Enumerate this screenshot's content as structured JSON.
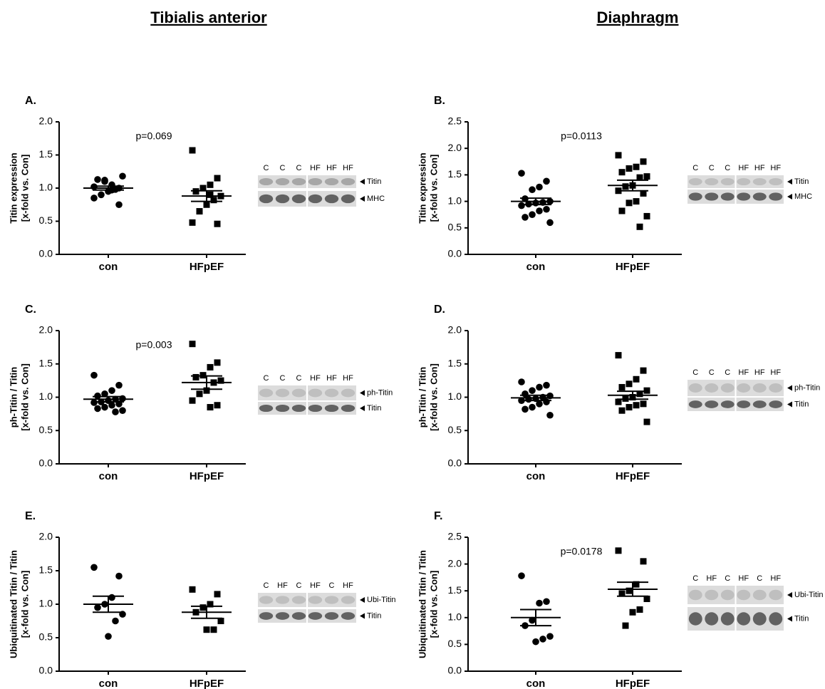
{
  "titles": [
    "Tibialis anterior",
    "Diaphragm"
  ],
  "chart_data": [
    {
      "type": "strip",
      "panel": "A.",
      "ylabel": [
        "Titin expression",
        "[x-fold vs. Con]"
      ],
      "categories": [
        "con",
        "HFpEF"
      ],
      "annotation": "p=0.069",
      "ylim": [
        0,
        2
      ],
      "yticks": [
        {
          "value": 0,
          "label": "0.0"
        },
        {
          "value": 0.5,
          "label": "0.5"
        },
        {
          "value": 1,
          "label": "1.0"
        },
        {
          "value": 1.5,
          "label": "1.5"
        },
        {
          "value": 2,
          "label": "2.0"
        }
      ],
      "groups": [
        {
          "marker": "circle",
          "values": [
            1.02,
            1.0,
            1.05,
            1.1,
            1.13,
            1.18,
            0.98,
            0.95,
            0.9,
            0.85,
            0.75,
            0.97,
            1.12
          ],
          "mean": 1.0,
          "sem": 0.03
        },
        {
          "marker": "square",
          "values": [
            1.57,
            1.15,
            1.05,
            1.0,
            0.95,
            0.88,
            0.82,
            0.75,
            0.65,
            0.48,
            0.46,
            0.9
          ],
          "mean": 0.88,
          "sem": 0.08
        }
      ],
      "blot": {
        "lanes": [
          "C",
          "C",
          "C",
          "HF",
          "HF",
          "HF"
        ],
        "bands": [
          "Titin",
          "MHC"
        ]
      }
    },
    {
      "type": "strip",
      "panel": "B.",
      "ylabel": [
        "Titin expression",
        "[x-fold vs. Con]"
      ],
      "categories": [
        "con",
        "HFpEF"
      ],
      "annotation": "p=0.0113",
      "ylim": [
        0,
        2.5
      ],
      "yticks": [
        {
          "value": 0,
          "label": "0.0"
        },
        {
          "value": 0.5,
          "label": "0.5"
        },
        {
          "value": 1,
          "label": "1.0"
        },
        {
          "value": 1.5,
          "label": "1.5"
        },
        {
          "value": 2,
          "label": "2.0"
        },
        {
          "value": 2.5,
          "label": "2.5"
        }
      ],
      "groups": [
        {
          "marker": "circle",
          "values": [
            1.53,
            1.38,
            1.27,
            1.22,
            1.05,
            1.0,
            0.98,
            0.97,
            0.95,
            0.92,
            0.85,
            0.82,
            0.75,
            0.7,
            0.6
          ],
          "mean": 1.0,
          "sem": 0.06
        },
        {
          "marker": "square",
          "values": [
            1.87,
            1.75,
            1.65,
            1.62,
            1.55,
            1.47,
            1.45,
            1.3,
            1.28,
            1.2,
            1.15,
            1.0,
            0.97,
            0.82,
            0.72,
            0.52
          ],
          "mean": 1.3,
          "sem": 0.1
        }
      ],
      "blot": {
        "lanes": [
          "C",
          "C",
          "C",
          "HF",
          "HF",
          "HF"
        ],
        "bands": [
          "Titin",
          "MHC"
        ]
      }
    },
    {
      "type": "strip",
      "panel": "C.",
      "ylabel": [
        "ph-Titin / Titin",
        "[x-fold vs. Con]"
      ],
      "categories": [
        "con",
        "HFpEF"
      ],
      "annotation": "p=0.003",
      "ylim": [
        0,
        2
      ],
      "yticks": [
        {
          "value": 0,
          "label": "0.0"
        },
        {
          "value": 0.5,
          "label": "0.5"
        },
        {
          "value": 1,
          "label": "1.0"
        },
        {
          "value": 1.5,
          "label": "1.5"
        },
        {
          "value": 2,
          "label": "2.0"
        }
      ],
      "groups": [
        {
          "marker": "circle",
          "values": [
            1.33,
            1.18,
            1.1,
            1.05,
            1.02,
            0.98,
            0.97,
            0.95,
            0.93,
            0.92,
            0.9,
            0.88,
            0.85,
            0.83,
            0.8,
            0.78
          ],
          "mean": 0.97,
          "sem": 0.04
        },
        {
          "marker": "square",
          "values": [
            1.8,
            1.52,
            1.45,
            1.33,
            1.3,
            1.25,
            1.22,
            1.1,
            1.05,
            0.95,
            0.88,
            0.85
          ],
          "mean": 1.22,
          "sem": 0.1
        }
      ],
      "blot": {
        "lanes": [
          "C",
          "C",
          "C",
          "HF",
          "HF",
          "HF"
        ],
        "bands": [
          "ph-Titin",
          "Titin"
        ]
      }
    },
    {
      "type": "strip",
      "panel": "D.",
      "ylabel": [
        "ph-Titin / Titin",
        "[x-fold vs. Con]"
      ],
      "categories": [
        "con",
        "HFpEF"
      ],
      "ylim": [
        0,
        2
      ],
      "yticks": [
        {
          "value": 0,
          "label": "0.0"
        },
        {
          "value": 0.5,
          "label": "0.5"
        },
        {
          "value": 1,
          "label": "1.0"
        },
        {
          "value": 1.5,
          "label": "1.5"
        },
        {
          "value": 2,
          "label": "2.0"
        }
      ],
      "groups": [
        {
          "marker": "circle",
          "values": [
            1.23,
            1.18,
            1.15,
            1.1,
            1.05,
            1.02,
            1.0,
            0.98,
            0.97,
            0.95,
            0.93,
            0.9,
            0.85,
            0.82,
            0.73
          ],
          "mean": 0.99,
          "sem": 0.04
        },
        {
          "marker": "square",
          "values": [
            1.63,
            1.4,
            1.27,
            1.2,
            1.15,
            1.1,
            1.05,
            1.0,
            0.98,
            0.93,
            0.9,
            0.88,
            0.85,
            0.8,
            0.63
          ],
          "mean": 1.03,
          "sem": 0.06
        }
      ],
      "blot": {
        "lanes": [
          "C",
          "C",
          "C",
          "HF",
          "HF",
          "HF"
        ],
        "bands": [
          "ph-Titin",
          "Titin"
        ]
      }
    },
    {
      "type": "strip",
      "panel": "E.",
      "ylabel": [
        "Ubiquitinated Titin / Titin",
        "[x-fold vs. Con]"
      ],
      "categories": [
        "con",
        "HFpEF"
      ],
      "ylim": [
        0,
        2
      ],
      "yticks": [
        {
          "value": 0,
          "label": "0.0"
        },
        {
          "value": 0.5,
          "label": "0.5"
        },
        {
          "value": 1,
          "label": "1.0"
        },
        {
          "value": 1.5,
          "label": "1.5"
        },
        {
          "value": 2,
          "label": "2.0"
        }
      ],
      "groups": [
        {
          "marker": "circle",
          "values": [
            1.55,
            1.42,
            1.1,
            1.0,
            0.95,
            0.85,
            0.75,
            0.52
          ],
          "mean": 1.0,
          "sem": 0.12
        },
        {
          "marker": "square",
          "values": [
            1.22,
            1.15,
            1.0,
            0.95,
            0.88,
            0.75,
            0.62,
            0.62
          ],
          "mean": 0.88,
          "sem": 0.09
        }
      ],
      "blot": {
        "lanes": [
          "C",
          "HF",
          "C",
          "HF",
          "C",
          "HF"
        ],
        "bands": [
          "Ubi-Titin",
          "Titin"
        ]
      }
    },
    {
      "type": "strip",
      "panel": "F.",
      "ylabel": [
        "Ubiquitinated Titin / Titin",
        "[x-fold vs. Con]"
      ],
      "categories": [
        "con",
        "HFpEF"
      ],
      "annotation": "p=0.0178",
      "ylim": [
        0,
        2.5
      ],
      "yticks": [
        {
          "value": 0,
          "label": "0.0"
        },
        {
          "value": 0.5,
          "label": "0.5"
        },
        {
          "value": 1,
          "label": "1.0"
        },
        {
          "value": 1.5,
          "label": "1.5"
        },
        {
          "value": 2,
          "label": "2.0"
        },
        {
          "value": 2.5,
          "label": "2.5"
        }
      ],
      "groups": [
        {
          "marker": "circle",
          "values": [
            1.78,
            1.3,
            1.27,
            0.95,
            0.85,
            0.65,
            0.6,
            0.55
          ],
          "mean": 1.0,
          "sem": 0.15
        },
        {
          "marker": "square",
          "values": [
            2.25,
            2.05,
            1.62,
            1.5,
            1.45,
            1.35,
            1.15,
            1.1,
            0.85
          ],
          "mean": 1.53,
          "sem": 0.13
        }
      ],
      "blot": {
        "lanes": [
          "C",
          "HF",
          "C",
          "HF",
          "C",
          "HF"
        ],
        "bands": [
          "Ubi-Titin",
          "Titin"
        ]
      }
    }
  ]
}
